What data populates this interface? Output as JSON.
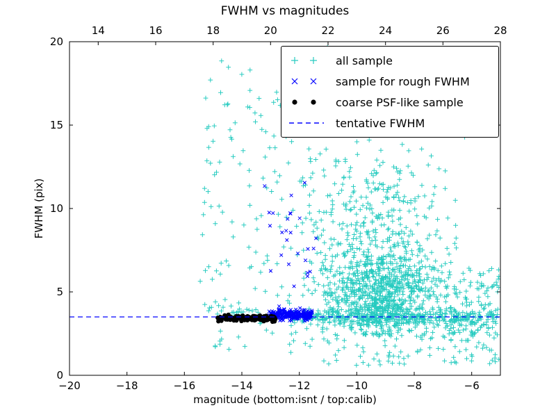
{
  "chart_data": {
    "type": "scatter",
    "title": "FWHM vs magnitudes",
    "xlabel": "magnitude (bottom:isnt / top:calib)",
    "ylabel": "FWHM (pix)",
    "xlim": [
      -20,
      -5
    ],
    "ylim": [
      0,
      20
    ],
    "grid": false,
    "seed": 1234567,
    "x_ticks_bottom": {
      "values": [
        -20,
        -18,
        -16,
        -14,
        -12,
        -10,
        -8,
        -6
      ],
      "labels": [
        "−20",
        "−18",
        "−16",
        "−14",
        "−12",
        "−10",
        "−8",
        "−6"
      ]
    },
    "x_ticks_top": {
      "values": [
        14,
        16,
        18,
        20,
        22,
        24,
        26,
        28
      ],
      "labels": [
        "14",
        "16",
        "18",
        "20",
        "22",
        "24",
        "26",
        "28"
      ],
      "offset": 33
    },
    "y_ticks": {
      "values": [
        0,
        5,
        10,
        15,
        20
      ],
      "labels": [
        "0",
        "5",
        "10",
        "15",
        "20"
      ]
    },
    "tentative_line": {
      "label": "tentative FWHM",
      "y": 3.5,
      "color": "#0000ff"
    },
    "series": [
      {
        "name": "all sample",
        "marker": "plus",
        "color": "#27cbc0",
        "marker_px": 3.4,
        "clusters": [
          {
            "n": 45,
            "x": [
              "uniform",
              -15.45,
              -14.25
            ],
            "y": [
              "uniform",
              3.6,
              19.9
            ]
          },
          {
            "n": 35,
            "x": [
              "uniform",
              -14.25,
              -13.0
            ],
            "y": [
              "uniform",
              4.2,
              19.9
            ]
          },
          {
            "n": 50,
            "x": [
              "uniform",
              -13.0,
              -11.5
            ],
            "y": [
              "uniform",
              4.0,
              17.0
            ]
          },
          {
            "n": 700,
            "x": [
              "normal",
              -9.2,
              0.95
            ],
            "y": [
              "normal",
              4.8,
              1.45
            ],
            "clip_x": [
              -12.0,
              -5.6
            ],
            "clip_y": [
              2.4,
              9.0
            ]
          },
          {
            "n": 380,
            "x": [
              "normal",
              -9.4,
              1.25
            ],
            "y": [
              "normal",
              6.6,
              2.2
            ],
            "clip_x": [
              -12.0,
              -5.9
            ],
            "clip_y": [
              2.5,
              12.5
            ]
          },
          {
            "n": 110,
            "x": [
              "normal",
              -9.3,
              1.05
            ],
            "y": [
              "uniform",
              9.0,
              13.0
            ]
          },
          {
            "n": 90,
            "x": [
              "uniform",
              -11.5,
              -6.0
            ],
            "y": [
              "uniform",
              12.5,
              19.9
            ]
          },
          {
            "n": 380,
            "x": [
              "uniform",
              -12.3,
              -5.05
            ],
            "y": [
              "normal",
              3.45,
              0.28
            ],
            "clip_y": [
              2.7,
              4.3
            ]
          },
          {
            "n": 110,
            "x": [
              "uniform",
              -7.0,
              -5.05
            ],
            "y": [
              "uniform",
              2.2,
              6.5
            ]
          },
          {
            "n": 110,
            "x": [
              "uniform",
              -12.5,
              -5.05
            ],
            "y": [
              "uniform",
              0.6,
              2.7
            ]
          },
          {
            "n": 12,
            "x": [
              "uniform",
              -15.1,
              -12.5
            ],
            "y": [
              "uniform",
              1.5,
              3.2
            ]
          },
          {
            "n": 25,
            "x": [
              "uniform",
              -15.3,
              -13.3
            ],
            "y": [
              "normal",
              3.7,
              0.35
            ],
            "clip_y": [
              3.1,
              4.6
            ]
          }
        ]
      },
      {
        "name": "sample for rough FWHM",
        "marker": "x",
        "color": "#0000ff",
        "marker_px": 3.0,
        "clusters": [
          {
            "n": 240,
            "x": [
              "uniform",
              -13.05,
              -11.55
            ],
            "y": [
              "normal",
              3.62,
              0.17
            ],
            "clip_y": [
              3.25,
              4.2
            ]
          },
          {
            "n": 26,
            "x": [
              "uniform",
              -13.4,
              -11.35
            ],
            "y": [
              "uniform",
              4.3,
              12.3
            ]
          }
        ]
      },
      {
        "name": "coarse PSF-like sample",
        "marker": "dot",
        "color": "#000000",
        "marker_px": 3.2,
        "clusters": [
          {
            "n": 130,
            "x": [
              "uniform",
              -14.85,
              -12.82
            ],
            "y": [
              "normal",
              3.42,
              0.085
            ],
            "clip_y": [
              3.2,
              3.68
            ]
          }
        ]
      }
    ],
    "legend": {
      "position": "upper right",
      "entries": [
        {
          "label": "all sample"
        },
        {
          "label": "sample for rough FWHM"
        },
        {
          "label": "coarse PSF-like sample"
        },
        {
          "label": "tentative FWHM"
        }
      ]
    }
  }
}
